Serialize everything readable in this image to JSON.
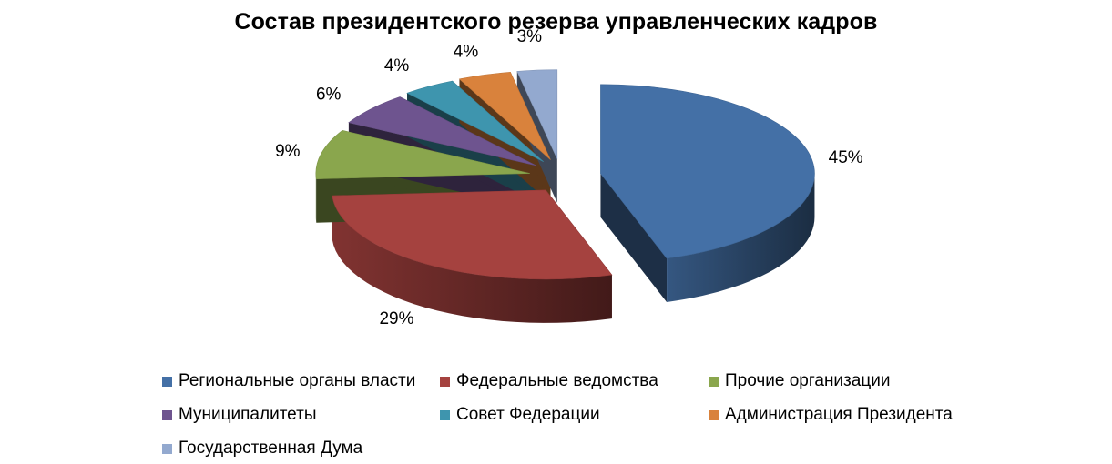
{
  "chart_data": {
    "type": "pie",
    "title": "Состав президентского резерва управленческих кадров",
    "series": [
      {
        "name": "Региональные органы власти",
        "value": 45,
        "label": "45%",
        "color": "#4470A6"
      },
      {
        "name": "Федеральные ведомства",
        "value": 29,
        "label": "29%",
        "color": "#A5423F"
      },
      {
        "name": "Прочие организации",
        "value": 9,
        "label": "9%",
        "color": "#8AA64D"
      },
      {
        "name": "Муниципалитеты",
        "value": 6,
        "label": "6%",
        "color": "#6E548F"
      },
      {
        "name": "Совет Федерации",
        "value": 4,
        "label": "4%",
        "color": "#3E95AE"
      },
      {
        "name": "Администрация Президента",
        "value": 4,
        "label": "4%",
        "color": "#D9823C"
      },
      {
        "name": "Государственная Дума",
        "value": 3,
        "label": "3%",
        "color": "#93A9CF"
      }
    ],
    "legend_position": "bottom",
    "style": "3d-exploded"
  }
}
